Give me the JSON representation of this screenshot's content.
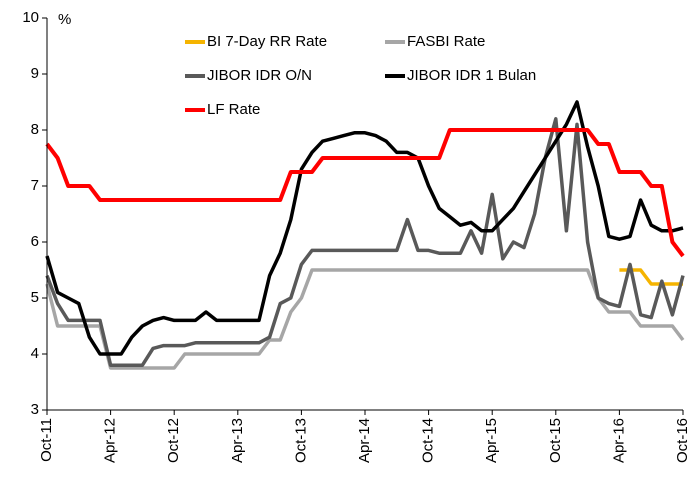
{
  "chart_data": {
    "type": "line",
    "y_label": "%",
    "categories": [
      "Oct-11",
      null,
      null,
      null,
      null,
      null,
      "Apr-12",
      null,
      null,
      null,
      null,
      null,
      "Oct-12",
      null,
      null,
      null,
      null,
      null,
      "Apr-13",
      null,
      null,
      null,
      null,
      null,
      "Oct-13",
      null,
      null,
      null,
      null,
      null,
      "Apr-14",
      null,
      null,
      null,
      null,
      null,
      "Oct-14",
      null,
      null,
      null,
      null,
      null,
      "Apr-15",
      null,
      null,
      null,
      null,
      null,
      "Oct-15",
      null,
      null,
      null,
      null,
      null,
      "Apr-16",
      null,
      null,
      null,
      null,
      null,
      "Oct-16"
    ],
    "ylim": [
      3,
      10
    ],
    "yticks": [
      3,
      4,
      5,
      6,
      7,
      8,
      9,
      10
    ],
    "legend": "top",
    "series": [
      {
        "name": "BI 7-Day RR Rate",
        "color": "#f5b400",
        "values": [
          null,
          null,
          null,
          null,
          null,
          null,
          null,
          null,
          null,
          null,
          null,
          null,
          null,
          null,
          null,
          null,
          null,
          null,
          null,
          null,
          null,
          null,
          null,
          null,
          null,
          null,
          null,
          null,
          null,
          null,
          null,
          null,
          null,
          null,
          null,
          null,
          null,
          null,
          null,
          null,
          null,
          null,
          null,
          null,
          null,
          null,
          null,
          null,
          null,
          null,
          null,
          null,
          null,
          null,
          5.5,
          5.5,
          5.5,
          5.25,
          5.25,
          5.25,
          5.25
        ]
      },
      {
        "name": "FASBI Rate",
        "color": "#a6a6a6",
        "values": [
          5.25,
          4.5,
          4.5,
          4.5,
          4.5,
          4.5,
          3.75,
          3.75,
          3.75,
          3.75,
          3.75,
          3.75,
          3.75,
          4.0,
          4.0,
          4.0,
          4.0,
          4.0,
          4.0,
          4.0,
          4.0,
          4.25,
          4.25,
          4.75,
          5.0,
          5.5,
          5.5,
          5.5,
          5.5,
          5.5,
          5.5,
          5.5,
          5.5,
          5.5,
          5.5,
          5.5,
          5.5,
          5.5,
          5.5,
          5.5,
          5.5,
          5.5,
          5.5,
          5.5,
          5.5,
          5.5,
          5.5,
          5.5,
          5.5,
          5.5,
          5.5,
          5.5,
          5.0,
          4.75,
          4.75,
          4.75,
          4.5,
          4.5,
          4.5,
          4.5,
          4.25
        ]
      },
      {
        "name": "JIBOR IDR O/N",
        "color": "#595959",
        "values": [
          5.4,
          4.9,
          4.6,
          4.6,
          4.6,
          4.6,
          3.8,
          3.8,
          3.8,
          3.8,
          4.1,
          4.15,
          4.15,
          4.15,
          4.2,
          4.2,
          4.2,
          4.2,
          4.2,
          4.2,
          4.2,
          4.3,
          4.9,
          5.0,
          5.6,
          5.85,
          5.85,
          5.85,
          5.85,
          5.85,
          5.85,
          5.85,
          5.85,
          5.85,
          6.4,
          5.85,
          5.85,
          5.8,
          5.8,
          5.8,
          6.2,
          5.8,
          6.85,
          5.7,
          6.0,
          5.9,
          6.5,
          7.5,
          8.2,
          6.2,
          8.1,
          6.0,
          5.0,
          4.9,
          4.85,
          5.6,
          4.7,
          4.65,
          5.3,
          4.7,
          5.4
        ]
      },
      {
        "name": "JIBOR IDR 1 Bulan",
        "color": "#000000",
        "values": [
          5.75,
          5.1,
          5.0,
          4.9,
          4.3,
          4.0,
          4.0,
          4.0,
          4.3,
          4.5,
          4.6,
          4.65,
          4.6,
          4.6,
          4.6,
          4.75,
          4.6,
          4.6,
          4.6,
          4.6,
          4.6,
          5.4,
          5.8,
          6.4,
          7.3,
          7.6,
          7.8,
          7.85,
          7.9,
          7.95,
          7.95,
          7.9,
          7.8,
          7.6,
          7.6,
          7.5,
          7.0,
          6.6,
          6.45,
          6.3,
          6.35,
          6.2,
          6.2,
          6.4,
          6.6,
          6.9,
          7.2,
          7.5,
          7.8,
          8.1,
          8.5,
          7.7,
          7.0,
          6.1,
          6.05,
          6.1,
          6.75,
          6.3,
          6.2,
          6.2,
          6.25
        ]
      },
      {
        "name": "LF Rate",
        "color": "#ff0000",
        "values": [
          7.75,
          7.5,
          7.0,
          7.0,
          7.0,
          6.75,
          6.75,
          6.75,
          6.75,
          6.75,
          6.75,
          6.75,
          6.75,
          6.75,
          6.75,
          6.75,
          6.75,
          6.75,
          6.75,
          6.75,
          6.75,
          6.75,
          6.75,
          7.25,
          7.25,
          7.25,
          7.5,
          7.5,
          7.5,
          7.5,
          7.5,
          7.5,
          7.5,
          7.5,
          7.5,
          7.5,
          7.5,
          7.5,
          8.0,
          8.0,
          8.0,
          8.0,
          8.0,
          8.0,
          8.0,
          8.0,
          8.0,
          8.0,
          8.0,
          8.0,
          8.0,
          8.0,
          7.75,
          7.75,
          7.25,
          7.25,
          7.25,
          7.0,
          7.0,
          6.0,
          5.75
        ]
      }
    ]
  }
}
